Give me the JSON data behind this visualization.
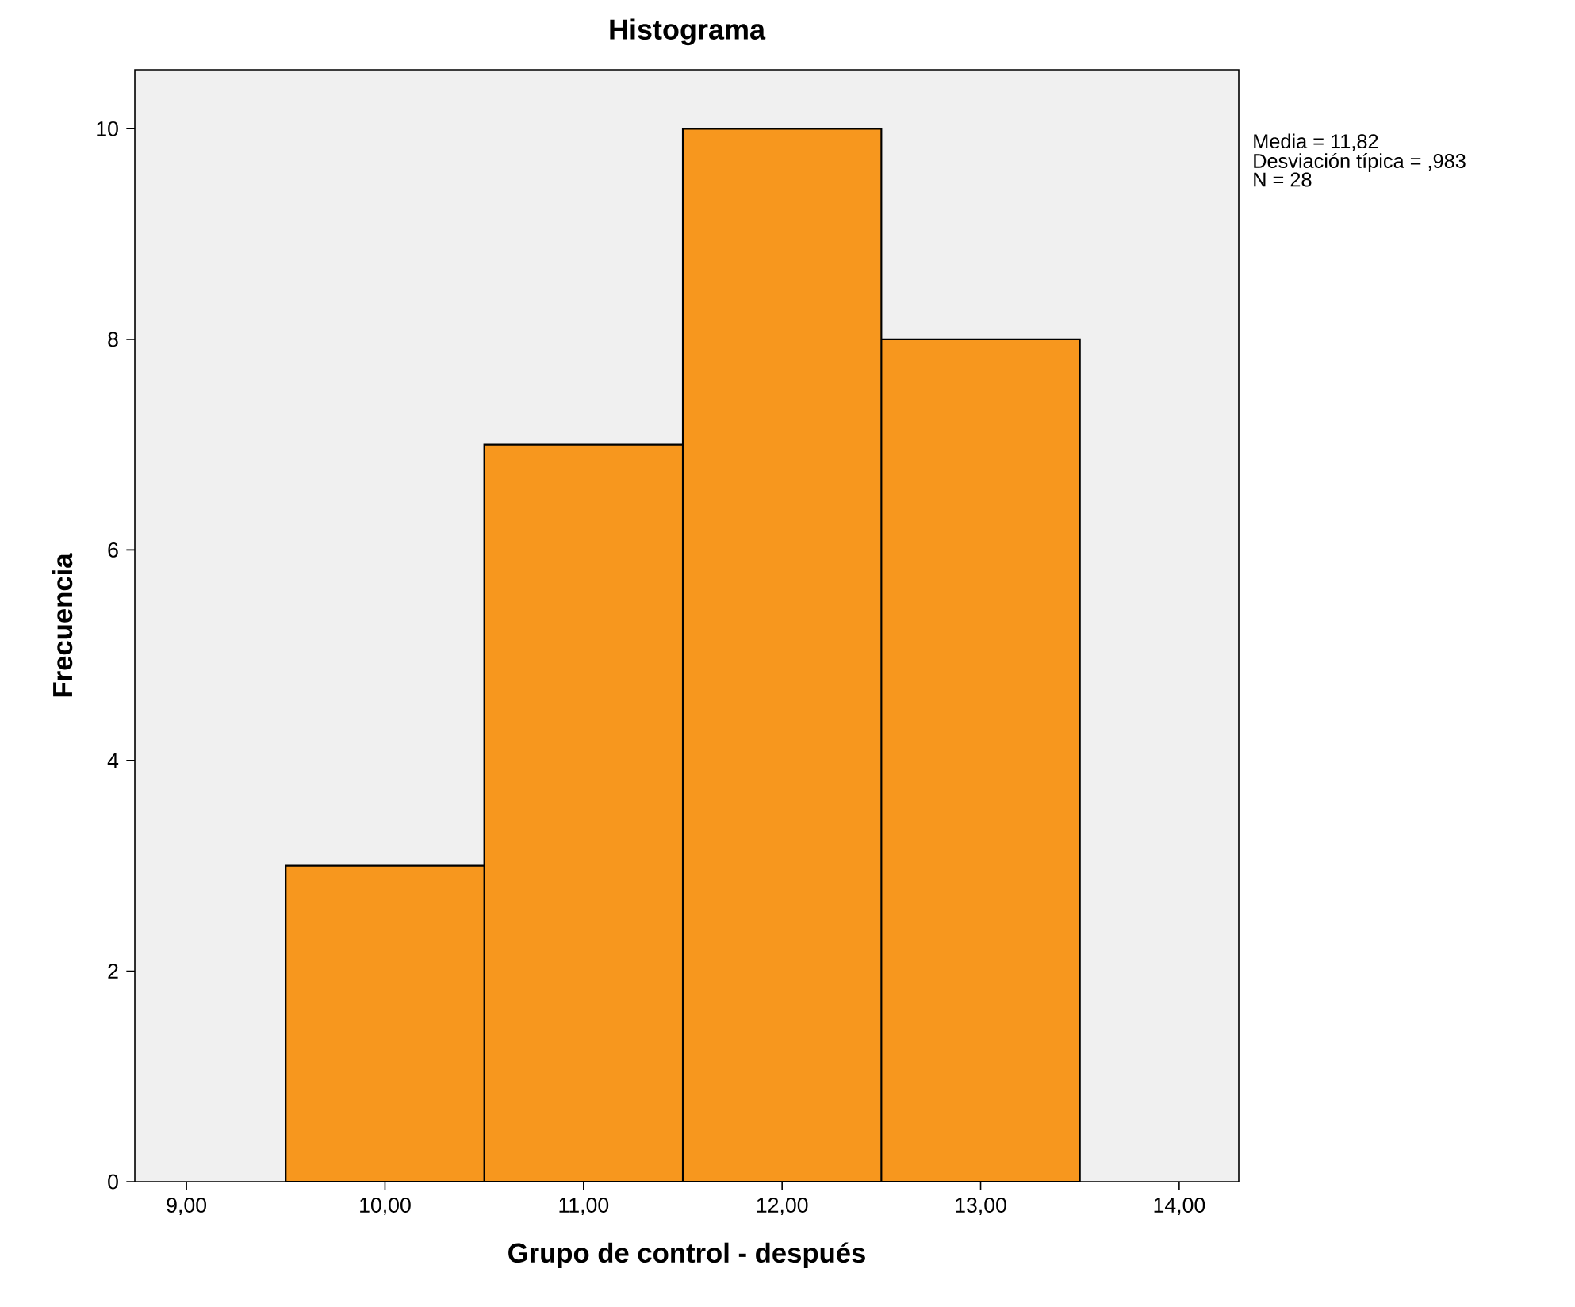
{
  "chart_data": {
    "type": "histogram",
    "title": "Histograma",
    "xlabel": "Grupo de control - después",
    "ylabel": "Frecuencia",
    "bins": [
      9.5,
      10.5,
      11.5,
      12.5,
      13.5
    ],
    "values": [
      3,
      7,
      10,
      8
    ],
    "color": "#f7971e",
    "xlim": [
      8.74,
      14.3
    ],
    "ylim": [
      0,
      10.56
    ],
    "xticks": [
      {
        "value": 9,
        "label": "9,00"
      },
      {
        "value": 10,
        "label": "10,00"
      },
      {
        "value": 11,
        "label": "11,00"
      },
      {
        "value": 12,
        "label": "12,00"
      },
      {
        "value": 13,
        "label": "13,00"
      },
      {
        "value": 14,
        "label": "14,00"
      }
    ],
    "yticks": [
      0,
      2,
      4,
      6,
      8,
      10
    ],
    "annotations": [
      "Media = 11,82",
      "Desviación típica = ,983",
      "N = 28"
    ]
  }
}
